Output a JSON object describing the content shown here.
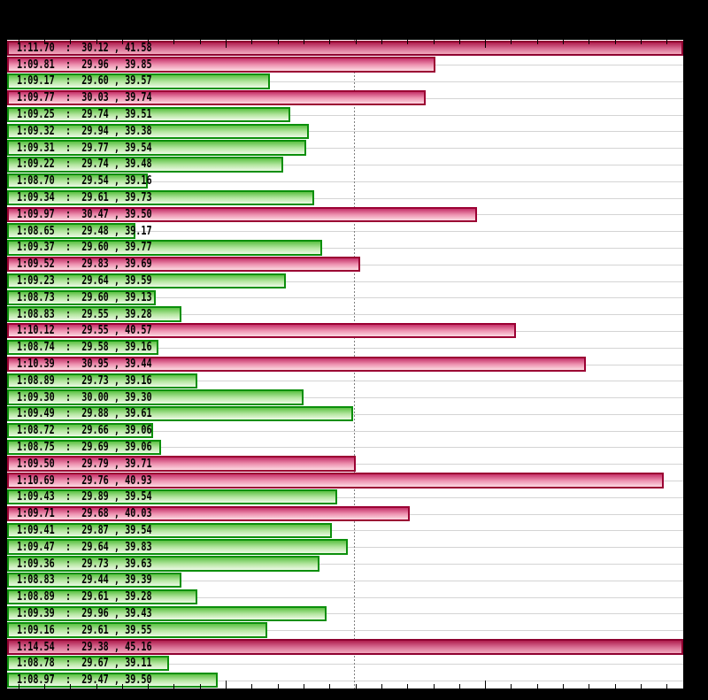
{
  "chart_data": {
    "type": "bar",
    "orientation": "horizontal",
    "title": "",
    "xlabel": "",
    "ylabel": "",
    "x_axis": {
      "min_seconds": 68.157,
      "max_seconds": 70.764,
      "minor_tick_start": 68.2,
      "minor_tick_step": 0.1,
      "minor_tick_end": 70.7,
      "major_ticks": [
        69.0,
        70.0
      ],
      "ref_line_seconds": 69.494
    },
    "grid": "horizontal-row-centers",
    "legend": "none",
    "bars": [
      {
        "label": "1:11.70  :  30.12 , 41.58",
        "lap_time": "1:11.70",
        "sector1": 30.12,
        "sector2": 41.58,
        "seconds": 71.7,
        "color": "pink_dark"
      },
      {
        "label": "1:09.81  :  29.96 , 39.85",
        "lap_time": "1:09.81",
        "sector1": 29.96,
        "sector2": 39.85,
        "seconds": 69.81,
        "color": "pink"
      },
      {
        "label": "1:09.17  :  29.60 , 39.57",
        "lap_time": "1:09.17",
        "sector1": 29.6,
        "sector2": 39.57,
        "seconds": 69.17,
        "color": "green"
      },
      {
        "label": "1:09.77  :  30.03 , 39.74",
        "lap_time": "1:09.77",
        "sector1": 30.03,
        "sector2": 39.74,
        "seconds": 69.77,
        "color": "pink"
      },
      {
        "label": "1:09.25  :  29.74 , 39.51",
        "lap_time": "1:09.25",
        "sector1": 29.74,
        "sector2": 39.51,
        "seconds": 69.25,
        "color": "green"
      },
      {
        "label": "1:09.32  :  29.94 , 39.38",
        "lap_time": "1:09.32",
        "sector1": 29.94,
        "sector2": 39.38,
        "seconds": 69.32,
        "color": "green"
      },
      {
        "label": "1:09.31  :  29.77 , 39.54",
        "lap_time": "1:09.31",
        "sector1": 29.77,
        "sector2": 39.54,
        "seconds": 69.31,
        "color": "green"
      },
      {
        "label": "1:09.22  :  29.74 , 39.48",
        "lap_time": "1:09.22",
        "sector1": 29.74,
        "sector2": 39.48,
        "seconds": 69.22,
        "color": "green"
      },
      {
        "label": "1:08.70  :  29.54 , 39.16",
        "lap_time": "1:08.70",
        "sector1": 29.54,
        "sector2": 39.16,
        "seconds": 68.7,
        "color": "green"
      },
      {
        "label": "1:09.34  :  29.61 , 39.73",
        "lap_time": "1:09.34",
        "sector1": 29.61,
        "sector2": 39.73,
        "seconds": 69.34,
        "color": "green"
      },
      {
        "label": "1:09.97  :  30.47 , 39.50",
        "lap_time": "1:09.97",
        "sector1": 30.47,
        "sector2": 39.5,
        "seconds": 69.97,
        "color": "pink"
      },
      {
        "label": "1:08.65  :  29.48 , 39.17",
        "lap_time": "1:08.65",
        "sector1": 29.48,
        "sector2": 39.17,
        "seconds": 68.65,
        "color": "green"
      },
      {
        "label": "1:09.37  :  29.60 , 39.77",
        "lap_time": "1:09.37",
        "sector1": 29.6,
        "sector2": 39.77,
        "seconds": 69.37,
        "color": "green"
      },
      {
        "label": "1:09.52  :  29.83 , 39.69",
        "lap_time": "1:09.52",
        "sector1": 29.83,
        "sector2": 39.69,
        "seconds": 69.52,
        "color": "pink"
      },
      {
        "label": "1:09.23  :  29.64 , 39.59",
        "lap_time": "1:09.23",
        "sector1": 29.64,
        "sector2": 39.59,
        "seconds": 69.23,
        "color": "green"
      },
      {
        "label": "1:08.73  :  29.60 , 39.13",
        "lap_time": "1:08.73",
        "sector1": 29.6,
        "sector2": 39.13,
        "seconds": 68.73,
        "color": "green"
      },
      {
        "label": "1:08.83  :  29.55 , 39.28",
        "lap_time": "1:08.83",
        "sector1": 29.55,
        "sector2": 39.28,
        "seconds": 68.83,
        "color": "green"
      },
      {
        "label": "1:10.12  :  29.55 , 40.57",
        "lap_time": "1:10.12",
        "sector1": 29.55,
        "sector2": 40.57,
        "seconds": 70.12,
        "color": "pink"
      },
      {
        "label": "1:08.74  :  29.58 , 39.16",
        "lap_time": "1:08.74",
        "sector1": 29.58,
        "sector2": 39.16,
        "seconds": 68.74,
        "color": "green"
      },
      {
        "label": "1:10.39  :  30.95 , 39.44",
        "lap_time": "1:10.39",
        "sector1": 30.95,
        "sector2": 39.44,
        "seconds": 70.39,
        "color": "pink"
      },
      {
        "label": "1:08.89  :  29.73 , 39.16",
        "lap_time": "1:08.89",
        "sector1": 29.73,
        "sector2": 39.16,
        "seconds": 68.89,
        "color": "green"
      },
      {
        "label": "1:09.30  :  30.00 , 39.30",
        "lap_time": "1:09.30",
        "sector1": 30.0,
        "sector2": 39.3,
        "seconds": 69.3,
        "color": "green"
      },
      {
        "label": "1:09.49  :  29.88 , 39.61",
        "lap_time": "1:09.49",
        "sector1": 29.88,
        "sector2": 39.61,
        "seconds": 69.49,
        "color": "green"
      },
      {
        "label": "1:08.72  :  29.66 , 39.06",
        "lap_time": "1:08.72",
        "sector1": 29.66,
        "sector2": 39.06,
        "seconds": 68.72,
        "color": "green"
      },
      {
        "label": "1:08.75  :  29.69 , 39.06",
        "lap_time": "1:08.75",
        "sector1": 29.69,
        "sector2": 39.06,
        "seconds": 68.75,
        "color": "green"
      },
      {
        "label": "1:09.50  :  29.79 , 39.71",
        "lap_time": "1:09.50",
        "sector1": 29.79,
        "sector2": 39.71,
        "seconds": 69.5,
        "color": "pink"
      },
      {
        "label": "1:10.69  :  29.76 , 40.93",
        "lap_time": "1:10.69",
        "sector1": 29.76,
        "sector2": 40.93,
        "seconds": 70.69,
        "color": "pink"
      },
      {
        "label": "1:09.43  :  29.89 , 39.54",
        "lap_time": "1:09.43",
        "sector1": 29.89,
        "sector2": 39.54,
        "seconds": 69.43,
        "color": "green"
      },
      {
        "label": "1:09.71  :  29.68 , 40.03",
        "lap_time": "1:09.71",
        "sector1": 29.68,
        "sector2": 40.03,
        "seconds": 69.71,
        "color": "pink"
      },
      {
        "label": "1:09.41  :  29.87 , 39.54",
        "lap_time": "1:09.41",
        "sector1": 29.87,
        "sector2": 39.54,
        "seconds": 69.41,
        "color": "green"
      },
      {
        "label": "1:09.47  :  29.64 , 39.83",
        "lap_time": "1:09.47",
        "sector1": 29.64,
        "sector2": 39.83,
        "seconds": 69.47,
        "color": "green"
      },
      {
        "label": "1:09.36  :  29.73 , 39.63",
        "lap_time": "1:09.36",
        "sector1": 29.73,
        "sector2": 39.63,
        "seconds": 69.36,
        "color": "green"
      },
      {
        "label": "1:08.83  :  29.44 , 39.39",
        "lap_time": "1:08.83",
        "sector1": 29.44,
        "sector2": 39.39,
        "seconds": 68.83,
        "color": "green"
      },
      {
        "label": "1:08.89  :  29.61 , 39.28",
        "lap_time": "1:08.89",
        "sector1": 29.61,
        "sector2": 39.28,
        "seconds": 68.89,
        "color": "green"
      },
      {
        "label": "1:09.39  :  29.96 , 39.43",
        "lap_time": "1:09.39",
        "sector1": 29.96,
        "sector2": 39.43,
        "seconds": 69.39,
        "color": "green"
      },
      {
        "label": "1:09.16  :  29.61 , 39.55",
        "lap_time": "1:09.16",
        "sector1": 29.61,
        "sector2": 39.55,
        "seconds": 69.16,
        "color": "green"
      },
      {
        "label": "1:14.54  :  29.38 , 45.16",
        "lap_time": "1:14.54",
        "sector1": 29.38,
        "sector2": 45.16,
        "seconds": 74.54,
        "color": "pink_dark"
      },
      {
        "label": "1:08.78  :  29.67 , 39.11",
        "lap_time": "1:08.78",
        "sector1": 29.67,
        "sector2": 39.11,
        "seconds": 68.78,
        "color": "green"
      },
      {
        "label": "1:08.97  :  29.47 , 39.50",
        "lap_time": "1:08.97",
        "sector1": 29.47,
        "sector2": 39.5,
        "seconds": 68.97,
        "color": "green"
      }
    ],
    "colors": {
      "outer_background": "#000000",
      "plot_background": "#ffffff",
      "gridline": "#d4d4d4",
      "ref_line": "#808080",
      "tick": "#000000",
      "label_text": "#000000",
      "green": {
        "border": "#0b8f0b",
        "top": "#5cc144",
        "mid": "#b4e6a0",
        "bottom": "#edfae6"
      },
      "pink": {
        "border": "#9b0033",
        "top": "#c53269",
        "mid": "#ee93b1",
        "bottom": "#fcdae2"
      },
      "pink_dark": {
        "border": "#8e0030",
        "top": "#b01e4e",
        "mid": "#d76c92",
        "bottom": "#f2abbf"
      }
    }
  }
}
